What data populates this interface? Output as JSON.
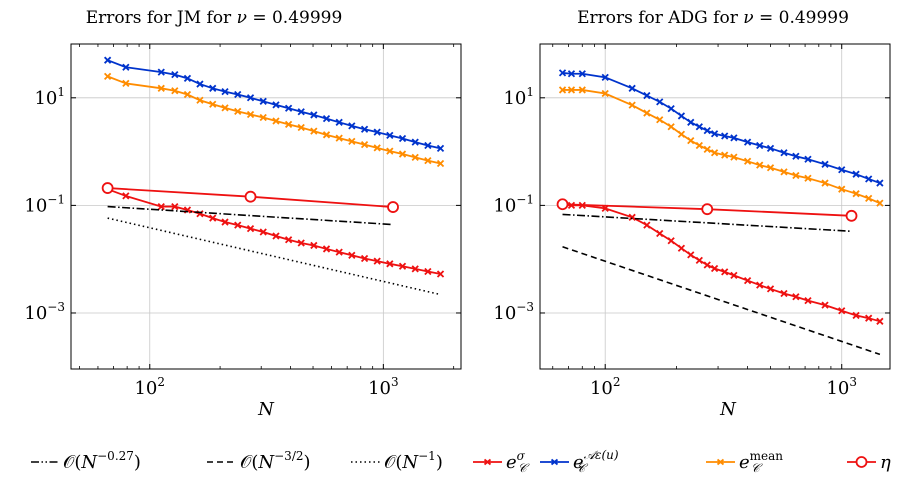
{
  "chart_data": [
    {
      "type": "line",
      "title": "Errors for JM for ν = 0.49999",
      "xlabel": "N",
      "ylabel": "",
      "xscale": "log",
      "yscale": "log",
      "xlim": [
        46,
        2150
      ],
      "ylim": [
        9.09e-05,
        100
      ],
      "grid": true,
      "xticks": [
        100,
        1000
      ],
      "yticks": [
        0.001,
        0.1,
        10
      ],
      "series": [
        {
          "name": "e_C^{Aε(u)}",
          "color": "#0033cc",
          "marker": "x",
          "x": [
            66,
            79,
            112,
            128,
            145,
            164,
            186,
            210,
            238,
            270,
            306,
            347,
            393,
            445,
            504,
            571,
            647,
            733,
            831,
            941,
            1066,
            1208,
            1369,
            1551,
            1757
          ],
          "y": [
            50,
            37,
            30,
            27,
            23,
            18,
            15,
            13,
            11.5,
            10,
            8.6,
            7.4,
            6.4,
            5.5,
            4.8,
            4.1,
            3.5,
            3.0,
            2.6,
            2.3,
            2.0,
            1.75,
            1.5,
            1.3,
            1.15
          ]
        },
        {
          "name": "e_C^{mean}",
          "color": "#ff8c00",
          "marker": "x",
          "x": [
            66,
            79,
            112,
            128,
            145,
            164,
            186,
            210,
            238,
            270,
            306,
            347,
            393,
            445,
            504,
            571,
            647,
            733,
            831,
            941,
            1066,
            1208,
            1369,
            1551,
            1757
          ],
          "y": [
            25,
            18.5,
            15,
            13.5,
            11.5,
            9,
            7.6,
            6.5,
            5.6,
            4.9,
            4.3,
            3.7,
            3.2,
            2.8,
            2.4,
            2.05,
            1.78,
            1.55,
            1.35,
            1.17,
            1.02,
            0.9,
            0.78,
            0.68,
            0.6
          ]
        },
        {
          "name": "e_C^σ",
          "color": "#ee1111",
          "marker": "x",
          "x": [
            66,
            79,
            112,
            128,
            145,
            164,
            186,
            210,
            238,
            270,
            306,
            347,
            393,
            445,
            504,
            571,
            647,
            733,
            831,
            941,
            1066,
            1208,
            1369,
            1551,
            1757
          ],
          "y": [
            0.2,
            0.15,
            0.095,
            0.095,
            0.082,
            0.07,
            0.058,
            0.049,
            0.043,
            0.037,
            0.032,
            0.027,
            0.023,
            0.02,
            0.018,
            0.0155,
            0.0135,
            0.0118,
            0.0103,
            0.0092,
            0.0082,
            0.0074,
            0.0066,
            0.0059,
            0.0053
          ]
        },
        {
          "name": "η",
          "color": "#ee1111",
          "marker": "circle",
          "x": [
            66,
            270,
            1100
          ],
          "y": [
            0.21,
            0.145,
            0.093
          ]
        },
        {
          "name": "O(N^{-0.27})",
          "color": "#000000",
          "dash": "dashdot",
          "x": [
            66,
            1100
          ],
          "y": [
            0.095,
            0.044
          ]
        },
        {
          "name": "O(N^{-1})",
          "color": "#000000",
          "dash": "dotted",
          "x": [
            66,
            1757
          ],
          "y": [
            0.058,
            0.0022
          ]
        }
      ]
    },
    {
      "type": "line",
      "title": "Errors for ADG for ν = 0.49999",
      "xlabel": "N",
      "ylabel": "",
      "xscale": "log",
      "yscale": "log",
      "xlim": [
        53,
        1600
      ],
      "ylim": [
        9.09e-05,
        100
      ],
      "grid": true,
      "xticks": [
        100,
        1000
      ],
      "yticks": [
        0.001,
        0.1,
        10
      ],
      "series": [
        {
          "name": "e_C^{Aε(u)}",
          "color": "#0033cc",
          "marker": "x",
          "x": [
            66,
            72,
            80,
            100,
            130,
            150,
            170,
            190,
            210,
            230,
            250,
            270,
            290,
            320,
            350,
            400,
            450,
            500,
            570,
            640,
            720,
            850,
            1000,
            1150,
            1300,
            1450
          ],
          "y": [
            29,
            28,
            28,
            24,
            15,
            11,
            8.4,
            6.3,
            4.6,
            3.5,
            2.9,
            2.45,
            2.15,
            1.95,
            1.8,
            1.5,
            1.3,
            1.15,
            0.95,
            0.82,
            0.72,
            0.58,
            0.46,
            0.38,
            0.31,
            0.26
          ]
        },
        {
          "name": "e_C^{mean}",
          "color": "#ff8c00",
          "marker": "x",
          "x": [
            66,
            72,
            80,
            100,
            130,
            150,
            170,
            190,
            210,
            230,
            250,
            270,
            290,
            320,
            350,
            400,
            450,
            500,
            570,
            640,
            720,
            850,
            1000,
            1150,
            1300,
            1450
          ],
          "y": [
            14,
            14,
            14,
            12,
            7.3,
            5.2,
            3.9,
            2.9,
            2.1,
            1.6,
            1.3,
            1.1,
            0.95,
            0.86,
            0.79,
            0.66,
            0.56,
            0.5,
            0.42,
            0.36,
            0.32,
            0.26,
            0.2,
            0.165,
            0.135,
            0.11
          ]
        },
        {
          "name": "e_C^σ",
          "color": "#ee1111",
          "marker": "x",
          "x": [
            66,
            72,
            80,
            100,
            130,
            150,
            170,
            190,
            210,
            230,
            250,
            270,
            290,
            320,
            350,
            400,
            450,
            500,
            570,
            640,
            720,
            850,
            1000,
            1150,
            1300,
            1450
          ],
          "y": [
            0.1,
            0.1,
            0.1,
            0.088,
            0.06,
            0.043,
            0.03,
            0.022,
            0.016,
            0.012,
            0.0095,
            0.0078,
            0.0067,
            0.0058,
            0.005,
            0.004,
            0.0033,
            0.0028,
            0.0023,
            0.002,
            0.0017,
            0.0014,
            0.0011,
            0.0009,
            0.0008,
            0.0007
          ]
        },
        {
          "name": "η",
          "color": "#ee1111",
          "marker": "circle",
          "x": [
            66,
            270,
            1100
          ],
          "y": [
            0.105,
            0.085,
            0.064
          ]
        },
        {
          "name": "O(N^{-0.27})",
          "color": "#000000",
          "dash": "dashdot",
          "x": [
            66,
            1100
          ],
          "y": [
            0.068,
            0.033
          ]
        },
        {
          "name": "O(N^{-3/2})",
          "color": "#000000",
          "dash": "dashed",
          "x": [
            66,
            1450
          ],
          "y": [
            0.017,
            0.00017
          ]
        }
      ]
    }
  ],
  "legend": [
    {
      "label": "O(N^{-0.27})",
      "dash": "dashdot",
      "marker": "none",
      "color": "#000000"
    },
    {
      "label": "O(N^{-3/2})",
      "dash": "dashed",
      "marker": "none",
      "color": "#000000"
    },
    {
      "label": "O(N^{-1})",
      "dash": "dotted",
      "marker": "none",
      "color": "#000000"
    },
    {
      "label": "e_C^σ",
      "dash": "solid",
      "marker": "x",
      "color": "#ee1111"
    },
    {
      "label": "e_C^{Aε(u)}",
      "dash": "solid",
      "marker": "x",
      "color": "#0033cc"
    },
    {
      "label": "e_C^{mean}",
      "dash": "solid",
      "marker": "x",
      "color": "#ff8c00"
    },
    {
      "label": "η",
      "dash": "solid",
      "marker": "circle",
      "color": "#ee1111"
    }
  ]
}
